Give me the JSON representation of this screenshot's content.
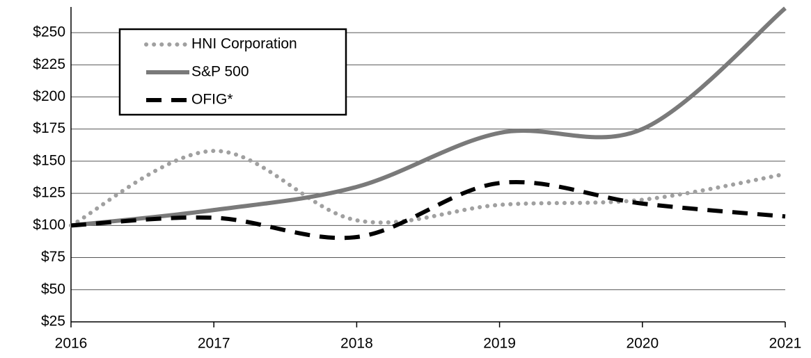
{
  "chart_data": {
    "type": "line",
    "x": [
      2016,
      2017,
      2018,
      2019,
      2020,
      2021
    ],
    "xlim": [
      2016,
      2021
    ],
    "xticks": [
      2016,
      2017,
      2018,
      2019,
      2020,
      2021
    ],
    "ylim": [
      25,
      270
    ],
    "yticks": [
      {
        "value": 25,
        "label": "$25"
      },
      {
        "value": 50,
        "label": "$50"
      },
      {
        "value": 75,
        "label": "$75"
      },
      {
        "value": 100,
        "label": "$100"
      },
      {
        "value": 125,
        "label": "$125"
      },
      {
        "value": 150,
        "label": "$150"
      },
      {
        "value": 175,
        "label": "$175"
      },
      {
        "value": 200,
        "label": "$200"
      },
      {
        "value": 225,
        "label": "$225"
      },
      {
        "value": 250,
        "label": "$250"
      }
    ],
    "grid": true,
    "legend": "upper left",
    "series": [
      {
        "name": "HNI Corporation",
        "color": "#a0a0a0",
        "style": "dotted",
        "values": [
          100,
          158,
          104,
          116,
          120,
          140
        ]
      },
      {
        "name": "S&P 500",
        "color": "#7a7a7a",
        "style": "solid",
        "values": [
          100,
          112,
          130,
          172,
          175,
          269
        ]
      },
      {
        "name": "OFIG*",
        "color": "#000000",
        "style": "dashed",
        "values": [
          100,
          106,
          91,
          133,
          117,
          107
        ]
      }
    ]
  }
}
